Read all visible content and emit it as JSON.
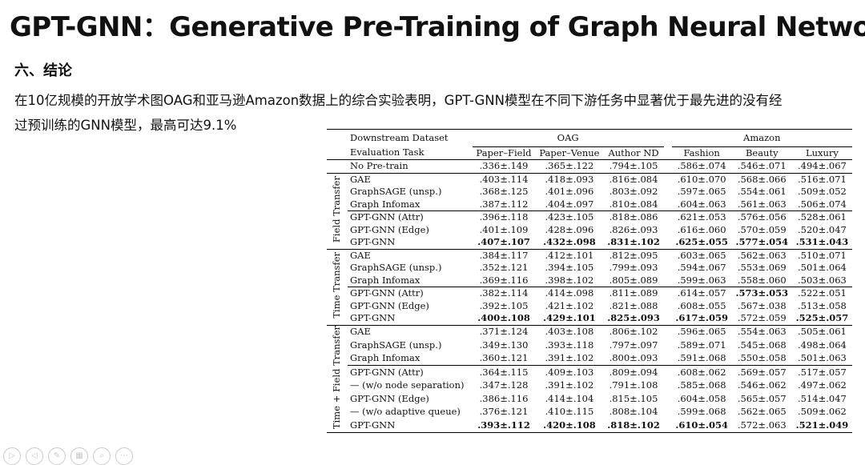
{
  "slide": {
    "title": "GPT-GNN：Generative Pre-Training of Graph Neural Network",
    "section": "六、结论",
    "body_line1": "在10亿规模的开放学术图OAG和亚马逊Amazon数据上的综合实验表明，GPT-GNN模型在不同下游任务中显著优于最先进的没有经",
    "body_line2": "过预训练的GNN模型，最高可达9.1%"
  },
  "table": {
    "header": {
      "downstream_dataset": "Downstream Dataset",
      "evaluation_task": "Evaluation Task",
      "oag": "OAG",
      "amazon": "Amazon",
      "cols": [
        "Paper–Field",
        "Paper–Venue",
        "Author ND",
        "Fashion",
        "Beauty",
        "Luxury"
      ]
    },
    "no_pretrain": {
      "method": "No Pre-train",
      "values": [
        ".336±.149",
        ".365±.122",
        ".794±.105",
        ".586±.074",
        ".546±.071",
        ".494±.067"
      ]
    },
    "groups": [
      {
        "label": "Field Transfer",
        "blocks": [
          [
            {
              "method": "GAE",
              "values": [
                ".403±.114",
                ".418±.093",
                ".816±.084",
                ".610±.070",
                ".568±.066",
                ".516±.071"
              ]
            },
            {
              "method": "GraphSAGE (unsp.)",
              "values": [
                ".368±.125",
                ".401±.096",
                ".803±.092",
                ".597±.065",
                ".554±.061",
                ".509±.052"
              ]
            },
            {
              "method": "Graph Infomax",
              "values": [
                ".387±.112",
                ".404±.097",
                ".810±.084",
                ".604±.063",
                ".561±.063",
                ".506±.074"
              ]
            }
          ],
          [
            {
              "method": "GPT-GNN (Attr)",
              "values": [
                ".396±.118",
                ".423±.105",
                ".818±.086",
                ".621±.053",
                ".576±.056",
                ".528±.061"
              ]
            },
            {
              "method": "GPT-GNN (Edge)",
              "values": [
                ".401±.109",
                ".428±.096",
                ".826±.093",
                ".616±.060",
                ".570±.059",
                ".520±.047"
              ]
            },
            {
              "method": "GPT-GNN",
              "values": [
                ".407±.107",
                ".432±.098",
                ".831±.102",
                ".625±.055",
                ".577±.054",
                ".531±.043"
              ]
            }
          ]
        ]
      },
      {
        "label": "Time Transfer",
        "blocks": [
          [
            {
              "method": "GAE",
              "values": [
                ".384±.117",
                ".412±.101",
                ".812±.095",
                ".603±.065",
                ".562±.063",
                ".510±.071"
              ]
            },
            {
              "method": "GraphSAGE (unsp.)",
              "values": [
                ".352±.121",
                ".394±.105",
                ".799±.093",
                ".594±.067",
                ".553±.069",
                ".501±.064"
              ]
            },
            {
              "method": "Graph Infomax",
              "values": [
                ".369±.116",
                ".398±.102",
                ".805±.089",
                ".599±.063",
                ".558±.060",
                ".503±.063"
              ]
            }
          ],
          [
            {
              "method": "GPT-GNN (Attr)",
              "values": [
                ".382±.114",
                ".414±.098",
                ".811±.089",
                ".614±.057",
                ".573±.053",
                ".522±.051"
              ]
            },
            {
              "method": "GPT-GNN (Edge)",
              "values": [
                ".392±.105",
                ".421±.102",
                ".821±.088",
                ".608±.055",
                ".567±.038",
                ".513±.058"
              ]
            },
            {
              "method": "GPT-GNN",
              "values": [
                ".400±.108",
                ".429±.101",
                ".825±.093",
                ".617±.059",
                ".572±.059",
                ".525±.057"
              ]
            }
          ]
        ]
      },
      {
        "label": "Time + Field Transfer",
        "blocks": [
          [
            {
              "method": "GAE",
              "values": [
                ".371±.124",
                ".403±.108",
                ".806±.102",
                ".596±.065",
                ".554±.063",
                ".505±.061"
              ]
            },
            {
              "method": "GraphSAGE (unsp.)",
              "values": [
                ".349±.130",
                ".393±.118",
                ".797±.097",
                ".589±.071",
                ".545±.068",
                ".498±.064"
              ]
            },
            {
              "method": "Graph Infomax",
              "values": [
                ".360±.121",
                ".391±.102",
                ".800±.093",
                ".591±.068",
                ".550±.058",
                ".501±.063"
              ]
            }
          ],
          [
            {
              "method": "GPT-GNN (Attr)",
              "values": [
                ".364±.115",
                ".409±.103",
                ".809±.094",
                ".608±.062",
                ".569±.057",
                ".517±.057"
              ]
            },
            {
              "method": "— (w/o node separation)",
              "values": [
                ".347±.128",
                ".391±.102",
                ".791±.108",
                ".585±.068",
                ".546±.062",
                ".497±.062"
              ]
            },
            {
              "method": "GPT-GNN (Edge)",
              "values": [
                ".386±.116",
                ".414±.104",
                ".815±.105",
                ".604±.058",
                ".565±.057",
                ".514±.047"
              ]
            },
            {
              "method": "— (w/o adaptive queue)",
              "values": [
                ".376±.121",
                ".410±.115",
                ".808±.104",
                ".599±.068",
                ".562±.065",
                ".509±.062"
              ]
            },
            {
              "method": "GPT-GNN",
              "values": [
                ".393±.112",
                ".420±.108",
                ".818±.102",
                ".610±.054",
                ".572±.063",
                ".521±.049"
              ]
            }
          ]
        ]
      }
    ]
  }
}
